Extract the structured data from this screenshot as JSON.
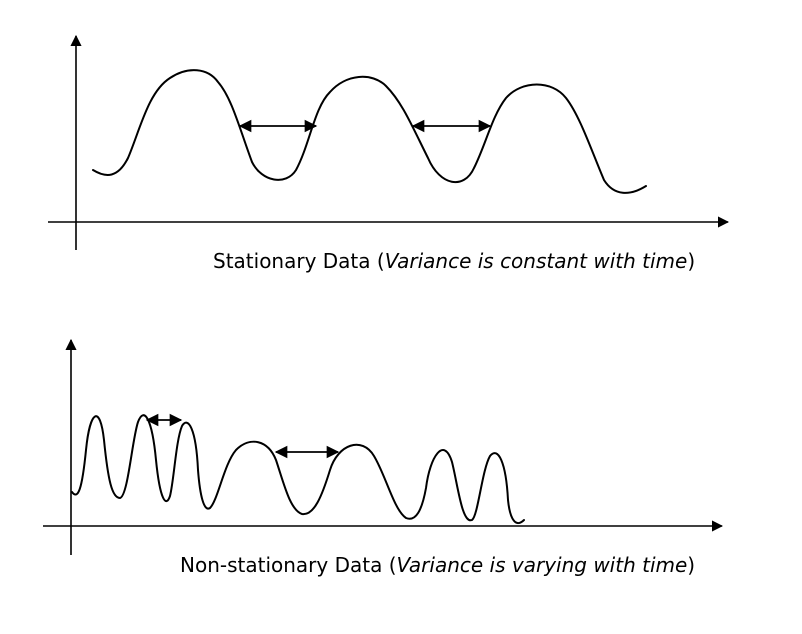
{
  "panels": [
    {
      "caption": {
        "main": "Stationary Data (",
        "italic": "Variance is constant with time",
        "close": ")"
      }
    },
    {
      "caption": {
        "main": "Non-stationary Data (",
        "italic": "Variance is varying with time",
        "close": ")"
      }
    }
  ],
  "colors": {
    "ink": "#000000",
    "background": "#ffffff"
  }
}
